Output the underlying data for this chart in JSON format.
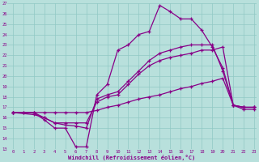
{
  "xlabel": "Windchill (Refroidissement éolien,°C)",
  "bg_color": "#b8e0dc",
  "line_color": "#880088",
  "grid_color": "#90c8c4",
  "xmin": -0.5,
  "xmax": 23.2,
  "ymin": 13,
  "ymax": 27,
  "xticks": [
    0,
    1,
    2,
    3,
    4,
    5,
    6,
    7,
    8,
    9,
    10,
    11,
    12,
    13,
    14,
    15,
    16,
    17,
    18,
    19,
    20,
    21,
    22,
    23
  ],
  "yticks": [
    13,
    14,
    15,
    16,
    17,
    18,
    19,
    20,
    21,
    22,
    23,
    24,
    25,
    26,
    27
  ],
  "line1_x": [
    0,
    1,
    2,
    3,
    4,
    5,
    6,
    7,
    8,
    9,
    10,
    11,
    12,
    13,
    14,
    15,
    16,
    17,
    18,
    19,
    20,
    21,
    22,
    23
  ],
  "line1_y": [
    16.5,
    16.5,
    16.5,
    15.8,
    15.0,
    15.0,
    13.2,
    13.2,
    18.2,
    19.2,
    22.5,
    23.0,
    24.0,
    24.3,
    26.8,
    26.2,
    25.5,
    25.5,
    24.4,
    22.8,
    20.8,
    17.2,
    17.0,
    17.0
  ],
  "line2_x": [
    0,
    2,
    3,
    4,
    5,
    6,
    7,
    8,
    9,
    10,
    11,
    12,
    13,
    14,
    15,
    16,
    17,
    18,
    19,
    20,
    21,
    22,
    23
  ],
  "line2_y": [
    16.5,
    16.5,
    16.0,
    15.5,
    15.5,
    15.5,
    15.5,
    17.5,
    18.0,
    18.2,
    19.2,
    20.2,
    21.0,
    21.5,
    21.8,
    22.0,
    22.2,
    22.5,
    22.5,
    22.8,
    17.2,
    17.0,
    17.0
  ],
  "line3_x": [
    0,
    1,
    2,
    3,
    4,
    5,
    6,
    7,
    8,
    9,
    10,
    11,
    12,
    13,
    14,
    15,
    16,
    17,
    18,
    19,
    20,
    21,
    22,
    23
  ],
  "line3_y": [
    16.5,
    16.5,
    16.5,
    16.5,
    16.5,
    16.5,
    16.5,
    16.5,
    16.7,
    17.0,
    17.2,
    17.5,
    17.8,
    18.0,
    18.2,
    18.5,
    18.8,
    19.0,
    19.3,
    19.5,
    19.8,
    17.2,
    16.8,
    16.8
  ],
  "line4_x": [
    0,
    2,
    3,
    4,
    5,
    6,
    7,
    8,
    9,
    10,
    11,
    12,
    13,
    14,
    15,
    16,
    17,
    18,
    19,
    20,
    21,
    22,
    23
  ],
  "line4_y": [
    16.5,
    16.3,
    16.0,
    15.5,
    15.3,
    15.2,
    15.0,
    17.8,
    18.2,
    18.5,
    19.5,
    20.5,
    21.5,
    22.2,
    22.5,
    22.8,
    23.0,
    23.0,
    23.0,
    20.5,
    17.2,
    17.0,
    17.0
  ]
}
